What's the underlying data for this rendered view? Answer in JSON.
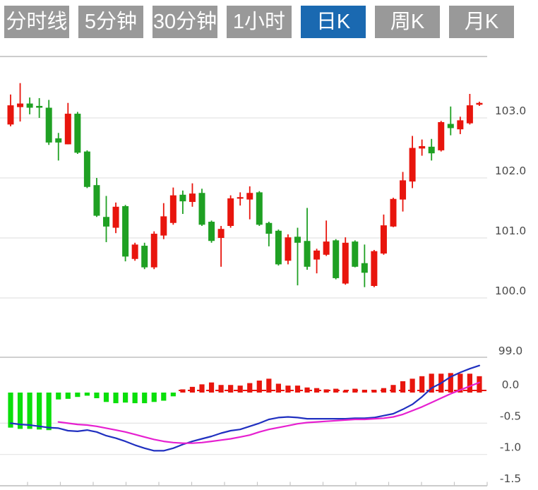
{
  "tab_bar": {
    "tabs": [
      {
        "id": "minute-line",
        "label": "分时线",
        "active": false
      },
      {
        "id": "5min",
        "label": "5分钟",
        "active": false
      },
      {
        "id": "30min",
        "label": "30分钟",
        "active": false
      },
      {
        "id": "1hour",
        "label": "1小时",
        "active": false
      },
      {
        "id": "daily-k",
        "label": "日K",
        "active": true
      },
      {
        "id": "weekly-k",
        "label": "周K",
        "active": false
      },
      {
        "id": "monthly-k",
        "label": "月K",
        "active": false
      }
    ]
  },
  "colors": {
    "active_tab": "#1a69b1",
    "inactive_tab": "#999999",
    "tab_text": "#ffffff",
    "candle_up": "#e8150d",
    "candle_down": "#1fa023",
    "macd_up": "#e8150d",
    "macd_down": "#0bdf0b",
    "blue_line": "#2030c0",
    "magenta_line": "#e620d0",
    "axis_label": "#4a4a4a",
    "grid_line": "#e4e4e4",
    "border_line": "#cccccc"
  },
  "chart_data": [
    {
      "type": "candlestick",
      "title": "",
      "xlabel": "",
      "ylabel": "",
      "y_ticks": [
        103.0,
        102.0,
        101.0,
        100.0,
        99.0
      ],
      "ylim": [
        99.0,
        104.0
      ],
      "grid": true,
      "up_color_convention": "red-rises-green-falls",
      "candles_ohlc": [
        [
          102.89,
          103.39,
          102.86,
          103.21
        ],
        [
          103.18,
          103.58,
          102.94,
          103.24
        ],
        [
          103.24,
          103.34,
          103.06,
          103.17
        ],
        [
          103.2,
          103.33,
          103.0,
          103.17
        ],
        [
          103.17,
          103.3,
          102.55,
          102.59
        ],
        [
          102.66,
          102.75,
          102.29,
          102.59
        ],
        [
          102.56,
          103.25,
          102.56,
          103.07
        ],
        [
          103.07,
          103.1,
          102.4,
          102.42
        ],
        [
          102.44,
          102.46,
          101.83,
          101.85
        ],
        [
          101.88,
          102.0,
          101.35,
          101.37
        ],
        [
          101.35,
          101.7,
          100.93,
          101.19
        ],
        [
          101.17,
          101.59,
          101.08,
          101.52
        ],
        [
          101.53,
          101.55,
          100.61,
          100.69
        ],
        [
          100.65,
          100.92,
          100.62,
          100.89
        ],
        [
          100.87,
          100.92,
          100.48,
          100.51
        ],
        [
          100.51,
          101.11,
          100.48,
          101.07
        ],
        [
          101.04,
          101.58,
          100.98,
          101.36
        ],
        [
          101.25,
          101.84,
          101.22,
          101.71
        ],
        [
          101.72,
          101.79,
          101.4,
          101.61
        ],
        [
          101.6,
          101.91,
          101.52,
          101.74
        ],
        [
          101.75,
          101.82,
          101.2,
          101.22
        ],
        [
          101.27,
          101.29,
          100.92,
          100.95
        ],
        [
          101.0,
          101.2,
          100.52,
          101.15
        ],
        [
          101.2,
          101.71,
          101.17,
          101.66
        ],
        [
          101.66,
          101.76,
          101.54,
          101.68
        ],
        [
          101.64,
          101.86,
          101.31,
          101.75
        ],
        [
          101.76,
          101.78,
          101.2,
          101.22
        ],
        [
          101.25,
          101.27,
          100.86,
          101.07
        ],
        [
          101.12,
          101.14,
          100.54,
          100.56
        ],
        [
          100.62,
          101.06,
          100.56,
          101.01
        ],
        [
          101.02,
          101.17,
          100.21,
          100.92
        ],
        [
          100.95,
          101.5,
          100.47,
          100.52
        ],
        [
          100.64,
          100.82,
          100.41,
          100.79
        ],
        [
          100.72,
          101.29,
          100.7,
          100.94
        ],
        [
          100.96,
          100.98,
          100.31,
          100.33
        ],
        [
          100.24,
          101.01,
          100.22,
          100.92
        ],
        [
          100.94,
          100.96,
          100.51,
          100.52
        ],
        [
          100.58,
          100.89,
          100.18,
          100.42
        ],
        [
          100.2,
          100.8,
          100.18,
          100.78
        ],
        [
          100.74,
          101.39,
          100.72,
          101.21
        ],
        [
          101.19,
          101.67,
          101.18,
          101.65
        ],
        [
          101.64,
          102.1,
          101.44,
          101.96
        ],
        [
          101.94,
          102.7,
          101.83,
          102.5
        ],
        [
          102.49,
          102.64,
          102.37,
          102.53
        ],
        [
          102.52,
          102.65,
          102.29,
          102.41
        ],
        [
          102.46,
          102.95,
          102.44,
          102.93
        ],
        [
          102.9,
          103.19,
          102.71,
          102.83
        ],
        [
          102.81,
          103.02,
          102.73,
          102.96
        ],
        [
          102.91,
          103.4,
          102.89,
          103.21
        ],
        [
          103.22,
          103.27,
          103.2,
          103.25
        ]
      ]
    },
    {
      "type": "bar",
      "subtype": "macd-panel",
      "y_ticks": [
        0.0,
        -0.5,
        -1.0,
        -1.5
      ],
      "ylim": [
        -1.5,
        0.55
      ],
      "grid": true,
      "x_axis": {
        "tick_count": 15,
        "labels": []
      },
      "histogram": [
        -0.56,
        -0.58,
        -0.58,
        -0.59,
        -0.6,
        -0.11,
        -0.1,
        -0.07,
        -0.05,
        -0.09,
        -0.15,
        -0.17,
        -0.16,
        -0.17,
        -0.17,
        -0.15,
        -0.13,
        -0.06,
        0.04,
        0.08,
        0.12,
        0.15,
        0.11,
        0.11,
        0.1,
        0.14,
        0.18,
        0.21,
        0.13,
        0.1,
        0.1,
        0.07,
        0.06,
        0.04,
        0.05,
        0.02,
        0.05,
        0.03,
        0.03,
        0.06,
        0.11,
        0.17,
        0.21,
        0.25,
        0.29,
        0.29,
        0.3,
        0.29,
        0.29,
        0.25
      ],
      "series": [
        {
          "name": "blue-line",
          "values": [
            -0.5,
            -0.52,
            -0.53,
            -0.55,
            -0.57,
            -0.58,
            -0.62,
            -0.63,
            -0.61,
            -0.64,
            -0.7,
            -0.74,
            -0.79,
            -0.85,
            -0.9,
            -0.94,
            -0.94,
            -0.9,
            -0.84,
            -0.79,
            -0.75,
            -0.71,
            -0.66,
            -0.62,
            -0.6,
            -0.55,
            -0.5,
            -0.44,
            -0.41,
            -0.4,
            -0.41,
            -0.43,
            -0.43,
            -0.43,
            -0.43,
            -0.43,
            -0.42,
            -0.42,
            -0.41,
            -0.38,
            -0.35,
            -0.28,
            -0.2,
            -0.08,
            0.06,
            0.14,
            0.24,
            0.31,
            0.37,
            0.42
          ]
        },
        {
          "name": "magenta-line",
          "values": [
            null,
            null,
            null,
            null,
            null,
            -0.48,
            -0.5,
            -0.52,
            -0.53,
            -0.55,
            -0.58,
            -0.61,
            -0.64,
            -0.68,
            -0.72,
            -0.76,
            -0.79,
            -0.81,
            -0.82,
            -0.82,
            -0.81,
            -0.79,
            -0.77,
            -0.75,
            -0.72,
            -0.69,
            -0.64,
            -0.6,
            -0.57,
            -0.54,
            -0.51,
            -0.49,
            -0.48,
            -0.47,
            -0.46,
            -0.45,
            -0.44,
            -0.44,
            -0.43,
            -0.42,
            -0.4,
            -0.36,
            -0.3,
            -0.24,
            -0.17,
            -0.1,
            -0.03,
            0.03,
            0.09,
            0.15
          ]
        }
      ]
    }
  ]
}
